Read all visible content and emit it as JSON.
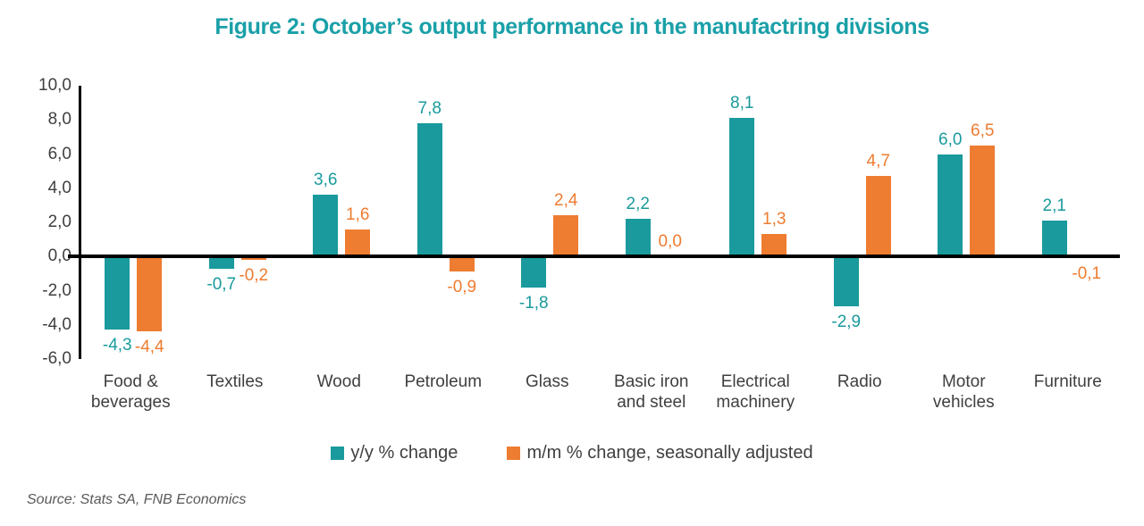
{
  "title": "Figure 2: October’s output performance in the manufactring divisions",
  "source": "Source: Stats SA, FNB Economics",
  "legend": [
    {
      "label": "y/y % change",
      "color": "#1A9A9D"
    },
    {
      "label": "m/m % change, seasonally adjusted",
      "color": "#EE7C31"
    }
  ],
  "colors": {
    "teal": "#1A9A9D",
    "orange": "#EE7C31",
    "title_teal": "#1AA0A8",
    "axis_line": "#000000",
    "axis_text": "#3F3F3F",
    "source_text": "#595959"
  },
  "chart_data": {
    "type": "bar",
    "title": "Figure 2: October’s output performance in the manufactring divisions",
    "categories": [
      "Food & beverages",
      "Textiles",
      "Wood",
      "Petroleum",
      "Glass",
      "Basic iron and steel",
      "Electrical machinery",
      "Radio",
      "Motor vehicles",
      "Furniture"
    ],
    "categories_display": [
      "Food &\nbeverages",
      "Textiles",
      "Wood",
      "Petroleum",
      "Glass",
      "Basic iron\nand steel",
      "Electrical\nmachinery",
      "Radio",
      "Motor\nvehicles",
      "Furniture"
    ],
    "series": [
      {
        "name": "y/y % change",
        "color": "#1A9A9D",
        "values": [
          -4.3,
          -0.7,
          3.6,
          7.8,
          -1.8,
          2.2,
          8.1,
          -2.9,
          6.0,
          2.1
        ]
      },
      {
        "name": "m/m % change, seasonally adjusted",
        "color": "#EE7C31",
        "values": [
          -4.4,
          -0.2,
          1.6,
          -0.9,
          2.4,
          0.0,
          1.3,
          4.7,
          6.5,
          -0.1
        ]
      }
    ],
    "data_labels": {
      "decimal_separator": ",",
      "yy_labels": [
        "-4,3",
        "-0,7",
        "3,6",
        "7,8",
        "-1,8",
        "2,2",
        "8,1",
        "-2,9",
        "6,0",
        "2,1"
      ],
      "mm_labels": [
        "-4,4",
        "-0,2",
        "1,6",
        "-0,9",
        "2,4",
        "0,0",
        "1,3",
        "4,7",
        "6,5",
        "-0,1"
      ]
    },
    "xlabel": "",
    "ylabel": "",
    "ylim": [
      -6,
      10
    ],
    "ytick_step": 2,
    "ytick_labels": [
      "10,0",
      "8,0",
      "6,0",
      "4,0",
      "2,0",
      "0,0",
      "-2,0",
      "-4,0",
      "-6,0"
    ],
    "grid": false,
    "legend_position": "bottom"
  }
}
